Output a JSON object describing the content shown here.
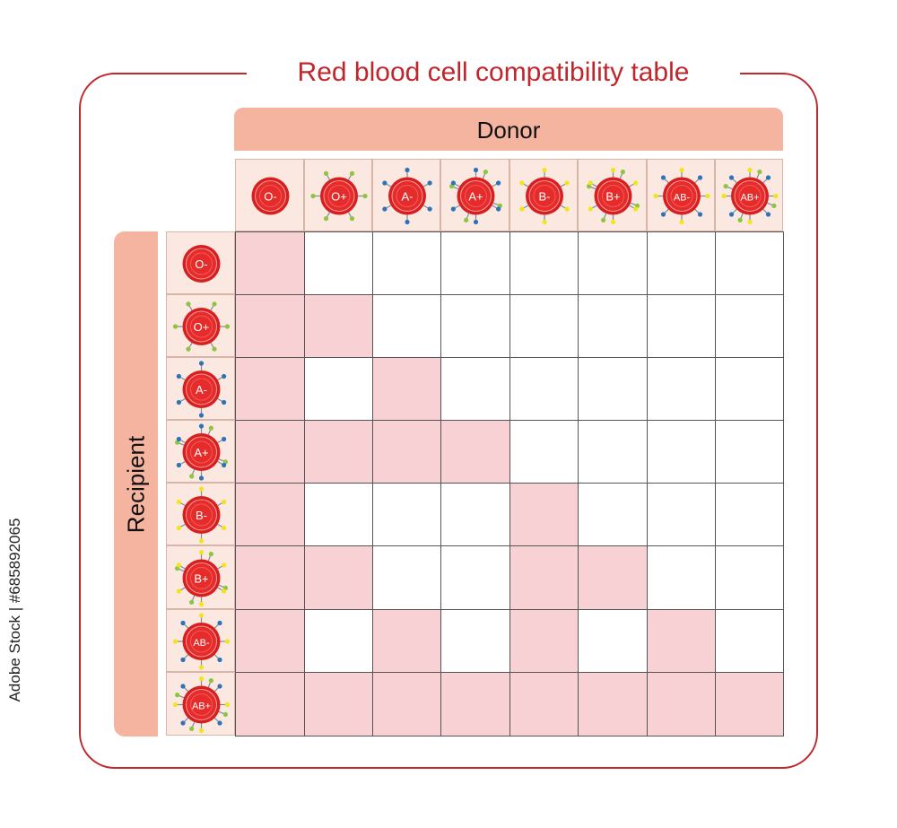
{
  "title": "Red blood cell compatibility table",
  "donor_label": "Donor",
  "recipient_label": "Recipient",
  "watermark": "Adobe Stock | #685892065",
  "blood_types": [
    {
      "label": "O-",
      "antigens": []
    },
    {
      "label": "O+",
      "antigens": [
        "Rh"
      ]
    },
    {
      "label": "A-",
      "antigens": [
        "A"
      ]
    },
    {
      "label": "A+",
      "antigens": [
        "A",
        "Rh"
      ]
    },
    {
      "label": "B-",
      "antigens": [
        "B"
      ]
    },
    {
      "label": "B+",
      "antigens": [
        "B",
        "Rh"
      ]
    },
    {
      "label": "AB-",
      "antigens": [
        "A",
        "B"
      ]
    },
    {
      "label": "AB+",
      "antigens": [
        "A",
        "B",
        "Rh"
      ]
    }
  ],
  "compatibility": [
    [
      1,
      0,
      0,
      0,
      0,
      0,
      0,
      0
    ],
    [
      1,
      1,
      0,
      0,
      0,
      0,
      0,
      0
    ],
    [
      1,
      0,
      1,
      0,
      0,
      0,
      0,
      0
    ],
    [
      1,
      1,
      1,
      1,
      0,
      0,
      0,
      0
    ],
    [
      1,
      0,
      0,
      0,
      1,
      0,
      0,
      0
    ],
    [
      1,
      1,
      0,
      0,
      1,
      1,
      0,
      0
    ],
    [
      1,
      0,
      1,
      0,
      1,
      0,
      1,
      0
    ],
    [
      1,
      1,
      1,
      1,
      1,
      1,
      1,
      1
    ]
  ],
  "colors": {
    "frame": "#c0272d",
    "band": "#f4b4a0",
    "header_cell": "#fbe8e1",
    "compatible": "#f8d1d4",
    "incompatible": "#ffffff",
    "cell_red": "#d81f1f",
    "cell_core": "#e62b2b",
    "antigen_A": "#2e73b8",
    "antigen_B": "#f2e51c",
    "antigen_Rh": "#8cc63f"
  },
  "icon_names": {
    "blood_cell": "red-blood-cell-icon",
    "antigen_A": "antigen-a-marker",
    "antigen_B": "antigen-b-marker",
    "antigen_Rh": "antigen-rh-marker"
  }
}
